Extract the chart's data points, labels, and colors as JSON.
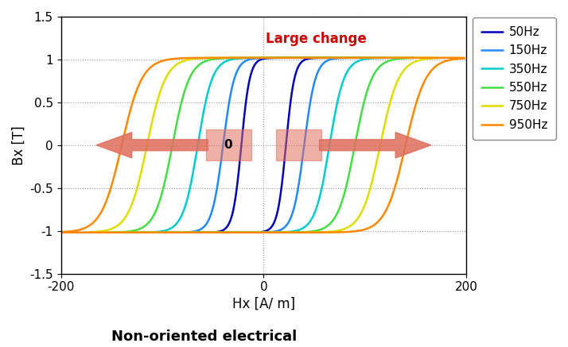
{
  "title": "Non-oriented electrical",
  "xlabel": "Hx [A/ m]",
  "ylabel": "Bx [T]",
  "annotation": "Large change",
  "xlim": [
    -200,
    200
  ],
  "ylim": [
    -1.5,
    1.5
  ],
  "xticks": [
    -200,
    0,
    200
  ],
  "yticks": [
    -1.5,
    -1.0,
    -0.5,
    0,
    0.5,
    1.0,
    1.5
  ],
  "ytick_labels": [
    "-1.5",
    "-1",
    "-0.5",
    "0",
    "0.5",
    "1",
    "1.5"
  ],
  "curves": [
    {
      "freq": "50Hz",
      "color": "#0000BB",
      "Hc": 22,
      "Hmax": 70,
      "Bsat": 1.02,
      "k": 0.12
    },
    {
      "freq": "150Hz",
      "color": "#2288FF",
      "Hc": 40,
      "Hmax": 95,
      "Bsat": 1.02,
      "k": 0.09
    },
    {
      "freq": "350Hz",
      "color": "#00CCCC",
      "Hc": 65,
      "Hmax": 120,
      "Bsat": 1.02,
      "k": 0.07
    },
    {
      "freq": "550Hz",
      "color": "#44DD44",
      "Hc": 90,
      "Hmax": 148,
      "Bsat": 1.02,
      "k": 0.06
    },
    {
      "freq": "750Hz",
      "color": "#DDDD00",
      "Hc": 115,
      "Hmax": 172,
      "Bsat": 1.02,
      "k": 0.055
    },
    {
      "freq": "950Hz",
      "color": "#FF8800",
      "Hc": 140,
      "Hmax": 198,
      "Bsat": 1.02,
      "k": 0.05
    }
  ],
  "background_color": "#ffffff",
  "grid_color": "#999999",
  "arrow_color": "#E07060",
  "annotation_color": "#CC0000",
  "figsize": [
    7.14,
    4.37
  ],
  "dpi": 100
}
